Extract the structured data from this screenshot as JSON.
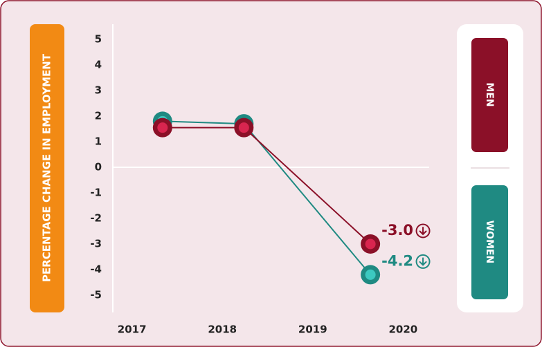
{
  "chart_data": {
    "type": "line",
    "y_label": "PERCENTAGE CHANGE IN EMPLOYMENT",
    "x": [
      2017.3,
      2018.2,
      2019.6
    ],
    "series": [
      {
        "name": "MEN",
        "color": "#8b1028",
        "marker_color": "#d9254f",
        "values": [
          1.55,
          1.55,
          -3.0
        ],
        "value_labels": [
          null,
          null,
          "-3.0"
        ]
      },
      {
        "name": "WOMEN",
        "color": "#1f8a82",
        "marker_color": "#3cc9c0",
        "values": [
          1.8,
          1.7,
          -4.2
        ],
        "value_labels": [
          null,
          null,
          "-4.2"
        ]
      }
    ],
    "xlim": [
      2016.75,
      2020.25
    ],
    "xticks": [
      2017,
      2018,
      2019,
      2020
    ],
    "ylim": [
      -5.5,
      5.5
    ],
    "yticks": [
      5,
      4,
      3,
      2,
      1,
      0,
      -1,
      -2,
      -3,
      -4,
      -5
    ]
  }
}
